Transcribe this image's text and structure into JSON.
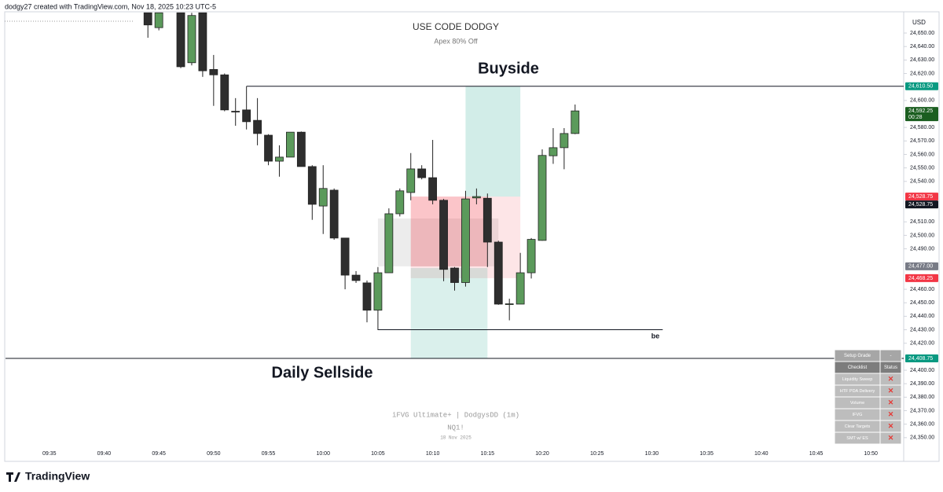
{
  "header": "dodgy27 created with TradingView.com, Nov 18, 2025 10:23 UTC-5",
  "logo": "TradingView",
  "watermark": {
    "title": "iFVG Ultimate+ | DodgysDD (1m)",
    "symbol": "NQ1!",
    "date": "18 Nov 2025"
  },
  "checklist": {
    "title": "Setup Grade",
    "grade": "-",
    "headers": [
      "Checklist",
      "Status"
    ],
    "items": [
      {
        "name": "Liquidity Sweep",
        "status": "✕"
      },
      {
        "name": "HTF PDA Delivery",
        "status": "✕"
      },
      {
        "name": "Volume",
        "status": "✕"
      },
      {
        "name": "IFVG",
        "status": "✕"
      },
      {
        "name": "Clear Targets",
        "status": "✕"
      },
      {
        "name": "SMT w/ ES",
        "status": "✕"
      }
    ]
  },
  "chart_data": {
    "type": "candlestick",
    "title": "USE CODE DODGY",
    "subtitle": "Apex 80% Off",
    "currency": "USD",
    "up_color": "#5b9a5b",
    "down_color": "#2e2e2e",
    "grid": false,
    "x": [
      "09:44",
      "09:45",
      "09:47",
      "09:48",
      "09:49",
      "09:50",
      "09:51",
      "09:52",
      "09:53",
      "09:54",
      "09:55",
      "09:56",
      "09:57",
      "09:58",
      "09:59",
      "10:00",
      "10:01",
      "10:02",
      "10:03",
      "10:04",
      "10:05",
      "10:06",
      "10:07",
      "10:08",
      "10:09",
      "10:10",
      "10:11",
      "10:12",
      "10:13",
      "10:14",
      "10:15",
      "10:16",
      "10:17",
      "10:18",
      "10:19",
      "10:20",
      "10:21",
      "10:22",
      "10:23"
    ],
    "candles": [
      {
        "open": 24665,
        "high": 24665,
        "low": 24646.5,
        "close": 24656
      },
      {
        "open": 24654,
        "high": 24665,
        "low": 24652,
        "close": 24665
      },
      {
        "open": 24665,
        "high": 24665,
        "low": 24624,
        "close": 24625
      },
      {
        "open": 24628,
        "high": 24665,
        "low": 24626,
        "close": 24663
      },
      {
        "open": 24665,
        "high": 24665,
        "low": 24617.5,
        "close": 24622
      },
      {
        "open": 24623,
        "high": 24633.75,
        "low": 24596,
        "close": 24619
      },
      {
        "open": 24619,
        "high": 24620,
        "low": 24592,
        "close": 24593
      },
      {
        "open": 24592,
        "high": 24601.75,
        "low": 24581.25,
        "close": 24591.75
      },
      {
        "open": 24593,
        "high": 24610.5,
        "low": 24578.5,
        "close": 24584.25
      },
      {
        "open": 24585.25,
        "high": 24601.75,
        "low": 24566.75,
        "close": 24575.5
      },
      {
        "open": 24574.25,
        "high": 24575,
        "low": 24552,
        "close": 24555
      },
      {
        "open": 24555,
        "high": 24566.75,
        "low": 24543.5,
        "close": 24558
      },
      {
        "open": 24558,
        "high": 24576.5,
        "low": 24558,
        "close": 24576.5
      },
      {
        "open": 24576.5,
        "high": 24577,
        "low": 24551,
        "close": 24551
      },
      {
        "open": 24551,
        "high": 24552,
        "low": 24511.5,
        "close": 24523
      },
      {
        "open": 24521.75,
        "high": 24552,
        "low": 24501,
        "close": 24534.75
      },
      {
        "open": 24533.5,
        "high": 24534.75,
        "low": 24496.75,
        "close": 24498
      },
      {
        "open": 24498,
        "high": 24498,
        "low": 24460,
        "close": 24470.5
      },
      {
        "open": 24470.5,
        "high": 24473.5,
        "low": 24464.75,
        "close": 24466.5
      },
      {
        "open": 24464.75,
        "high": 24466.5,
        "low": 24435.5,
        "close": 24444.5
      },
      {
        "open": 24444.5,
        "high": 24476.5,
        "low": 24429.75,
        "close": 24472.25
      },
      {
        "open": 24472.25,
        "high": 24520,
        "low": 24472.25,
        "close": 24516
      },
      {
        "open": 24516,
        "high": 24534.75,
        "low": 24514,
        "close": 24533
      },
      {
        "open": 24531.75,
        "high": 24561,
        "low": 24526,
        "close": 24549.25
      },
      {
        "open": 24549.25,
        "high": 24552,
        "low": 24541.5,
        "close": 24542.75
      },
      {
        "open": 24542.75,
        "high": 24570.75,
        "low": 24523,
        "close": 24526
      },
      {
        "open": 24526,
        "high": 24527,
        "low": 24466,
        "close": 24474.75
      },
      {
        "open": 24475.75,
        "high": 24476.5,
        "low": 24459,
        "close": 24465
      },
      {
        "open": 24465,
        "high": 24533,
        "low": 24462,
        "close": 24527
      },
      {
        "open": 24527.75,
        "high": 24534.75,
        "low": 24523,
        "close": 24528.75
      },
      {
        "open": 24527.5,
        "high": 24531,
        "low": 24476.5,
        "close": 24495
      },
      {
        "open": 24495,
        "high": 24496,
        "low": 24448.5,
        "close": 24449
      },
      {
        "open": 24449,
        "high": 24453,
        "low": 24437,
        "close": 24449.25
      },
      {
        "open": 24449,
        "high": 24487,
        "low": 24449,
        "close": 24472.25
      },
      {
        "open": 24472.25,
        "high": 24498,
        "low": 24468,
        "close": 24497
      },
      {
        "open": 24496.25,
        "high": 24563.75,
        "low": 24496,
        "close": 24559.25
      },
      {
        "open": 24559,
        "high": 24579.5,
        "low": 24553,
        "close": 24565
      },
      {
        "open": 24565,
        "high": 24579.5,
        "low": 24549,
        "close": 24575.5
      },
      {
        "open": 24575.5,
        "high": 24597,
        "low": 24575,
        "close": 24592.25
      }
    ],
    "xlim": [
      "09:31",
      "10:53"
    ],
    "xticks": [
      "09:35",
      "09:40",
      "09:45",
      "09:50",
      "09:55",
      "10:00",
      "10:05",
      "10:10",
      "10:15",
      "10:20",
      "10:25",
      "10:30",
      "10:35",
      "10:40",
      "10:45",
      "10:50"
    ],
    "ylim": [
      24343.5,
      24665.75
    ],
    "yticks": [
      {
        "value": 24350,
        "label": "24,350.00"
      },
      {
        "value": 24360,
        "label": "24,360.00"
      },
      {
        "value": 24370,
        "label": "24,370.00"
      },
      {
        "value": 24380,
        "label": "24,380.00"
      },
      {
        "value": 24390,
        "label": "24,390.00"
      },
      {
        "value": 24400,
        "label": "24,400.00"
      },
      {
        "value": 24420,
        "label": "24,420.00"
      },
      {
        "value": 24430,
        "label": "24,430.00"
      },
      {
        "value": 24440,
        "label": "24,440.00"
      },
      {
        "value": 24450,
        "label": "24,450.00"
      },
      {
        "value": 24460,
        "label": "24,460.00"
      },
      {
        "value": 24490,
        "label": "24,490.00"
      },
      {
        "value": 24500,
        "label": "24,500.00"
      },
      {
        "value": 24510,
        "label": "24,510.00"
      },
      {
        "value": 24540,
        "label": "24,540.00"
      },
      {
        "value": 24550,
        "label": "24,550.00"
      },
      {
        "value": 24560,
        "label": "24,560.00"
      },
      {
        "value": 24570,
        "label": "24,570.00"
      },
      {
        "value": 24580,
        "label": "24,580.00"
      },
      {
        "value": 24600,
        "label": "24,600.00"
      },
      {
        "value": 24620,
        "label": "24,620.00"
      },
      {
        "value": 24630,
        "label": "24,630.00"
      },
      {
        "value": 24640,
        "label": "24,640.00"
      },
      {
        "value": 24650,
        "label": "24,650.00"
      }
    ],
    "price_labels": [
      {
        "value": 24610.5,
        "label": "24,610.50",
        "color": "#089981"
      },
      {
        "value": 24592.25,
        "label": "24,592.25",
        "countdown": "00:28",
        "color": "#1b5e20"
      },
      {
        "value": 24528.75,
        "label": "24,528.75",
        "color": "#f23645"
      },
      {
        "value": 24528.75,
        "label": "24,528.75",
        "color": "#131722"
      },
      {
        "value": 24477,
        "label": "24,477.00",
        "color": "#787b86"
      },
      {
        "value": 24468.25,
        "label": "24,468.25",
        "color": "#f23645"
      },
      {
        "value": 24408.75,
        "label": "24,408.75",
        "color": "#089981"
      }
    ],
    "zones": [
      {
        "start": "10:05",
        "end": "10:16",
        "top": 24512.5,
        "bottom": 24477,
        "color": "rgba(200,200,200,0.35)"
      },
      {
        "start": "10:08",
        "end": "10:18",
        "top": 24528.75,
        "bottom": 24468.25,
        "color": "rgba(242,54,69,0.13)"
      },
      {
        "start": "10:08",
        "end": "10:15",
        "top": 24528.75,
        "bottom": 24477,
        "color": "rgba(242,54,69,0.18)"
      },
      {
        "start": "10:13",
        "end": "10:18",
        "top": 24610.5,
        "bottom": 24528.75,
        "color": "rgba(8,153,129,0.18)"
      },
      {
        "start": "10:08",
        "end": "10:15",
        "top": 24475.75,
        "bottom": 24408.75,
        "color": "rgba(8,153,129,0.15)"
      }
    ],
    "levels": [
      {
        "label": "Buyside",
        "value": 24610.5,
        "start": "09:53",
        "end": "10:53"
      },
      {
        "label": "Daily Sellside",
        "value": 24408.75,
        "start": "09:31",
        "end": "10:53"
      },
      {
        "label": "be",
        "value": 24430,
        "start": "10:05",
        "end": "10:31"
      }
    ]
  }
}
